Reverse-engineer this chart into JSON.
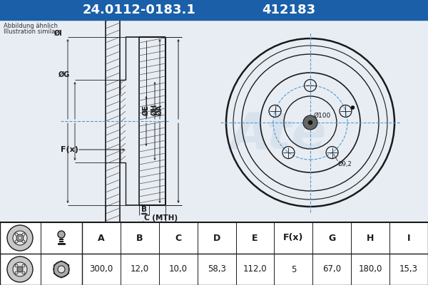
{
  "title_part": "24.0112-0183.1",
  "title_num": "412183",
  "header_bg": "#1a5fa8",
  "header_text_color": "#ffffff",
  "bg_color": "#cdd9e8",
  "diagram_bg": "#dce6f0",
  "table_bg": "#ffffff",
  "note_line1": "Abbildung ähnlich",
  "note_line2": "Illustration similar",
  "watermark": "Ate",
  "col_headers": [
    "A",
    "B",
    "C",
    "D",
    "E",
    "F(x)",
    "G",
    "H",
    "I"
  ],
  "col_values": [
    "300,0",
    "12,0",
    "10,0",
    "58,3",
    "112,0",
    "5",
    "67,0",
    "180,0",
    "15,3"
  ],
  "line_color": "#1a1a1a",
  "hatch_color": "#555555",
  "dim_color": "#1a1a1a",
  "cross_color": "#5599cc",
  "bolt_circle_color": "#5599cc"
}
